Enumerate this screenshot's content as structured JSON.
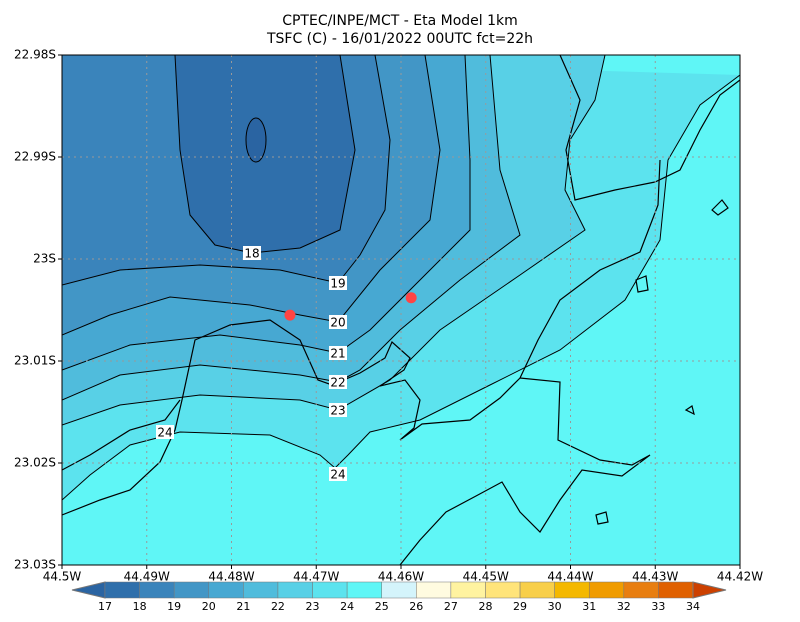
{
  "title_lines": [
    "CPTEC/INPE/MCT -  Eta Model 1km",
    "TSFC (C) - 16/01/2022 00UTC fct=22h"
  ],
  "map": {
    "xlim": [
      -44.5,
      -44.42
    ],
    "ylim": [
      -23.03,
      -22.98
    ],
    "xticks": [
      {
        "value": -44.5,
        "label": "44.5W"
      },
      {
        "value": -44.49,
        "label": "44.49W"
      },
      {
        "value": -44.48,
        "label": "44.48W"
      },
      {
        "value": -44.47,
        "label": "44.47W"
      },
      {
        "value": -44.46,
        "label": "44.46W"
      },
      {
        "value": -44.45,
        "label": "44.45W"
      },
      {
        "value": -44.44,
        "label": "44.44W"
      },
      {
        "value": -44.43,
        "label": "44.43W"
      },
      {
        "value": -44.42,
        "label": "44.42W"
      }
    ],
    "yticks": [
      {
        "value": -22.98,
        "label": "22.98S"
      },
      {
        "value": -22.99,
        "label": "22.99S"
      },
      {
        "value": -23.0,
        "label": "23S"
      },
      {
        "value": -23.01,
        "label": "23.01S"
      },
      {
        "value": -23.02,
        "label": "23.02S"
      },
      {
        "value": -23.03,
        "label": "23.03S"
      }
    ],
    "contour_labels": [
      18,
      19,
      20,
      21,
      22,
      23,
      24,
      24
    ],
    "stations": {
      "color": "#ff4444",
      "lon": [
        -44.4731,
        -44.4588
      ],
      "lat": [
        -23.0055,
        -23.0038
      ]
    }
  },
  "colorbar": {
    "levels": [
      17,
      18,
      19,
      20,
      21,
      22,
      23,
      24,
      25,
      26,
      27,
      28,
      29,
      30,
      31,
      32,
      33,
      34
    ],
    "colors": [
      "#2a64a2",
      "#2f6fab",
      "#3a84bb",
      "#4296c6",
      "#47a8d2",
      "#50bcdc",
      "#58d0e6",
      "#5ce3ee",
      "#5ff6f6",
      "#d4f4fb",
      "#fffbe0",
      "#fff3a0",
      "#ffe47a",
      "#f8cf4a",
      "#f4b800",
      "#f09c00",
      "#e87e10",
      "#e06000",
      "#cc4000"
    ]
  }
}
